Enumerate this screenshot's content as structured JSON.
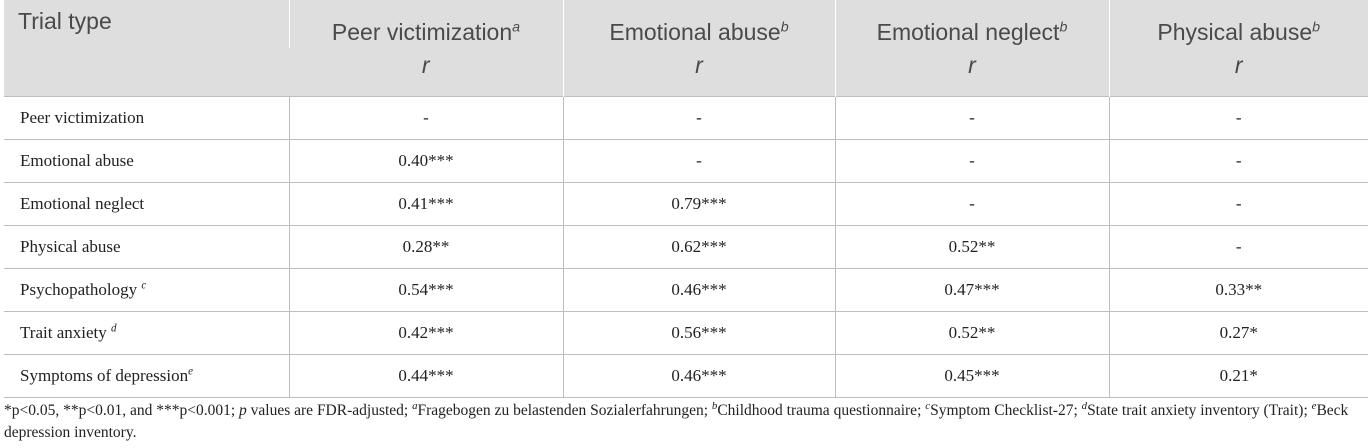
{
  "table": {
    "header": {
      "row_label": "Trial type",
      "columns": [
        {
          "name": "Peer victimization",
          "sup": "a",
          "stat": "r"
        },
        {
          "name": "Emotional abuse",
          "sup": "b",
          "stat": "r"
        },
        {
          "name": "Emotional neglect",
          "sup": "b",
          "stat": "r"
        },
        {
          "name": "Physical abuse",
          "sup": "b",
          "stat": "r"
        }
      ]
    },
    "rows": [
      {
        "label": "Peer victimization",
        "sup": "",
        "cells": [
          "-",
          "-",
          "-",
          "-"
        ]
      },
      {
        "label": "Emotional abuse",
        "sup": "",
        "cells": [
          "0.40***",
          "-",
          "-",
          "-"
        ]
      },
      {
        "label": "Emotional neglect",
        "sup": "",
        "cells": [
          "0.41***",
          "0.79***",
          "-",
          "-"
        ]
      },
      {
        "label": "Physical abuse",
        "sup": "",
        "cells": [
          "0.28**",
          "0.62***",
          "0.52**",
          "-"
        ]
      },
      {
        "label": "Psychopathology ",
        "sup": "c",
        "cells": [
          "0.54***",
          "0.46***",
          "0.47***",
          "0.33**"
        ]
      },
      {
        "label": "Trait anxiety ",
        "sup": "d",
        "cells": [
          "0.42***",
          "0.56***",
          "0.52**",
          "0.27*"
        ]
      },
      {
        "label": "Symptoms of depression",
        "sup": "e",
        "cells": [
          "0.44***",
          "0.46***",
          "0.45***",
          "0.21*"
        ]
      }
    ]
  },
  "footnote": {
    "sig": "*p<0.05, **p<0.01, and ***p<0.001; ",
    "p_italic": "p",
    "fdr": " values are FDR-adjusted; ",
    "a_sup": "a",
    "a_text": "Fragebogen zu belastenden Sozialerfahrungen; ",
    "b_sup": "b",
    "b_text": "Childhood trauma questionnaire; ",
    "c_sup": "c",
    "c_text": "Symptom Checklist-27; ",
    "d_sup": "d",
    "d_text": "State trait anxiety inventory (Trait); ",
    "e_sup": "e",
    "e_text": "Beck depression inventory."
  }
}
